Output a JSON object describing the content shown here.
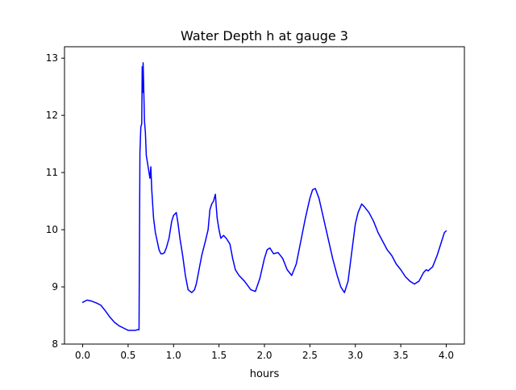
{
  "chart_data": {
    "type": "line",
    "title": "Water Depth h at gauge 3",
    "xlabel": "hours",
    "ylabel": "",
    "xlim": [
      -0.2,
      4.2
    ],
    "ylim": [
      8,
      13.2
    ],
    "xticks": [
      0.0,
      0.5,
      1.0,
      1.5,
      2.0,
      2.5,
      3.0,
      3.5,
      4.0
    ],
    "xtick_labels": [
      "0.0",
      "0.5",
      "1.0",
      "1.5",
      "2.0",
      "2.5",
      "3.0",
      "3.5",
      "4.0"
    ],
    "yticks": [
      8,
      9,
      10,
      11,
      12,
      13
    ],
    "ytick_labels": [
      "8",
      "9",
      "10",
      "11",
      "12",
      "13"
    ],
    "grid": false,
    "series": [
      {
        "name": "",
        "color": "#0000ff",
        "x": [
          0.0,
          0.05,
          0.1,
          0.15,
          0.2,
          0.25,
          0.3,
          0.35,
          0.4,
          0.45,
          0.5,
          0.55,
          0.58,
          0.6,
          0.62,
          0.63,
          0.64,
          0.65,
          0.655,
          0.66,
          0.665,
          0.67,
          0.68,
          0.69,
          0.7,
          0.72,
          0.74,
          0.75,
          0.76,
          0.77,
          0.78,
          0.8,
          0.82,
          0.84,
          0.86,
          0.88,
          0.9,
          0.92,
          0.95,
          0.98,
          1.0,
          1.03,
          1.05,
          1.07,
          1.1,
          1.13,
          1.16,
          1.2,
          1.23,
          1.25,
          1.28,
          1.31,
          1.35,
          1.38,
          1.4,
          1.42,
          1.44,
          1.46,
          1.47,
          1.48,
          1.5,
          1.52,
          1.55,
          1.58,
          1.62,
          1.65,
          1.68,
          1.72,
          1.78,
          1.85,
          1.9,
          1.95,
          2.0,
          2.03,
          2.06,
          2.1,
          2.15,
          2.2,
          2.25,
          2.3,
          2.35,
          2.4,
          2.45,
          2.5,
          2.53,
          2.56,
          2.6,
          2.65,
          2.7,
          2.75,
          2.8,
          2.84,
          2.88,
          2.92,
          2.96,
          3.0,
          3.03,
          3.07,
          3.1,
          3.15,
          3.2,
          3.25,
          3.3,
          3.35,
          3.4,
          3.45,
          3.5,
          3.55,
          3.6,
          3.65,
          3.7,
          3.75,
          3.78,
          3.8,
          3.85,
          3.9,
          3.95,
          3.98,
          4.0
        ],
        "values": [
          8.73,
          8.77,
          8.75,
          8.72,
          8.68,
          8.58,
          8.47,
          8.38,
          8.32,
          8.28,
          8.24,
          8.24,
          8.24,
          8.25,
          8.25,
          11.35,
          11.8,
          11.85,
          12.85,
          12.4,
          12.92,
          12.6,
          11.9,
          11.7,
          11.3,
          11.1,
          10.9,
          11.1,
          10.7,
          10.45,
          10.2,
          9.95,
          9.8,
          9.65,
          9.58,
          9.58,
          9.6,
          9.68,
          9.85,
          10.15,
          10.25,
          10.3,
          10.1,
          9.85,
          9.55,
          9.2,
          8.95,
          8.9,
          8.95,
          9.05,
          9.3,
          9.55,
          9.8,
          10.0,
          10.35,
          10.45,
          10.5,
          10.62,
          10.4,
          10.2,
          10.0,
          9.85,
          9.9,
          9.85,
          9.75,
          9.5,
          9.3,
          9.2,
          9.1,
          8.95,
          8.92,
          9.15,
          9.5,
          9.65,
          9.68,
          9.58,
          9.6,
          9.5,
          9.3,
          9.2,
          9.4,
          9.8,
          10.2,
          10.55,
          10.7,
          10.72,
          10.55,
          10.2,
          9.85,
          9.5,
          9.2,
          9.0,
          8.9,
          9.1,
          9.6,
          10.1,
          10.3,
          10.45,
          10.4,
          10.3,
          10.15,
          9.95,
          9.8,
          9.65,
          9.55,
          9.4,
          9.3,
          9.18,
          9.1,
          9.05,
          9.1,
          9.25,
          9.3,
          9.28,
          9.35,
          9.55,
          9.8,
          9.95,
          9.98
        ]
      }
    ]
  }
}
